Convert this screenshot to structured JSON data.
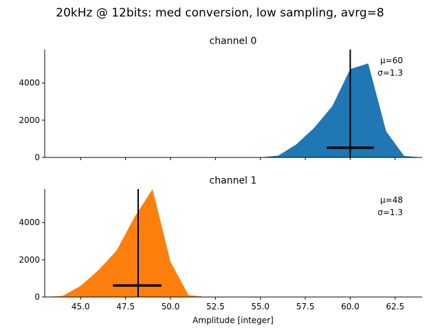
{
  "figure": {
    "title": "20kHz @ 12bits: med conversion, low sampling, avrg=8"
  },
  "chart_data": [
    {
      "type": "area",
      "title": "channel 0",
      "xlabel": "",
      "ylabel": "",
      "xlim": [
        43.0,
        64.0
      ],
      "ylim": [
        0,
        5800
      ],
      "xticks": [
        45.0,
        47.5,
        50.0,
        52.5,
        55.0,
        57.5,
        60.0,
        62.5
      ],
      "xtick_labels": [],
      "yticks": [
        0,
        2000,
        4000
      ],
      "ytick_labels": [
        "0",
        "2000",
        "4000"
      ],
      "color": "#1f77b4",
      "x": [
        55,
        56,
        57,
        58,
        59,
        60,
        61,
        62,
        63,
        64
      ],
      "y": [
        0,
        100,
        700,
        1600,
        2750,
        4750,
        5050,
        1400,
        80,
        0
      ],
      "mean_line_x": 60.0,
      "std_bar": {
        "x_from": 58.7,
        "x_to": 61.3,
        "y": 520
      },
      "annotation_mu": "μ=60",
      "annotation_sigma": "σ=1.3"
    },
    {
      "type": "area",
      "title": "channel 1",
      "xlabel": "Amplitude [integer]",
      "ylabel": "",
      "xlim": [
        43.0,
        64.0
      ],
      "ylim": [
        0,
        5800
      ],
      "xticks": [
        45.0,
        47.5,
        50.0,
        52.5,
        55.0,
        57.5,
        60.0,
        62.5
      ],
      "xtick_labels": [
        "45.0",
        "47.5",
        "50.0",
        "52.5",
        "55.0",
        "57.5",
        "60.0",
        "62.5"
      ],
      "yticks": [
        0,
        2000,
        4000
      ],
      "ytick_labels": [
        "0",
        "2000",
        "4000"
      ],
      "color": "#ff7f0e",
      "x": [
        43,
        44,
        45,
        46,
        47,
        48,
        49,
        50,
        51,
        52,
        53
      ],
      "y": [
        0,
        60,
        600,
        1450,
        2500,
        4300,
        5800,
        1900,
        100,
        0,
        0
      ],
      "mean_line_x": 48.2,
      "std_bar": {
        "x_from": 46.8,
        "x_to": 49.5,
        "y": 620
      },
      "annotation_mu": "μ=48",
      "annotation_sigma": "σ=1.3"
    }
  ]
}
